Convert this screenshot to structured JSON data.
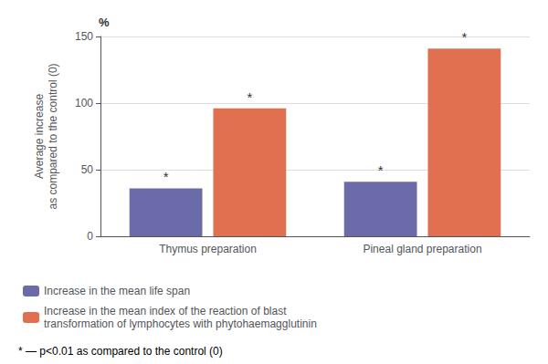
{
  "chart_data": {
    "type": "bar",
    "categories": [
      "Thymus preparation",
      "Pineal gland preparation"
    ],
    "series": [
      {
        "name": "Increase in the mean life span",
        "color": "#6b6baa",
        "values": [
          36,
          41
        ]
      },
      {
        "name": "Increase in the mean index of the reaction of blast\ntransformation of lymphocytes with phytohaemagglutinin",
        "color": "#e07050",
        "values": [
          96,
          141
        ]
      }
    ],
    "ylabel": "Average increase\nas compared to the control (0)",
    "ylim": [
      0,
      150
    ],
    "yticks": [
      0,
      50,
      100,
      150
    ],
    "grid": true,
    "legend": "lower left",
    "annotations": [
      {
        "text": "*",
        "series": "Increase in the mean life span",
        "category": "Thymus preparation"
      },
      {
        "text": "*",
        "series": "Increase in the mean life span",
        "category": "Pineal gland preparation"
      },
      {
        "text": "*",
        "series": "Increase in the mean index of the reaction of blast\ntransformation of lymphocytes with phytohaemagglutinin",
        "category": "Thymus preparation"
      },
      {
        "text": "*",
        "series": "Increase in the mean index of the reaction of blast\ntransformation of lymphocytes with phytohaemagglutinin",
        "category": "Pineal gland preparation"
      },
      {
        "text": "%"
      },
      {
        "text": "* — p<0.01 as compared to the control (0)"
      }
    ]
  }
}
